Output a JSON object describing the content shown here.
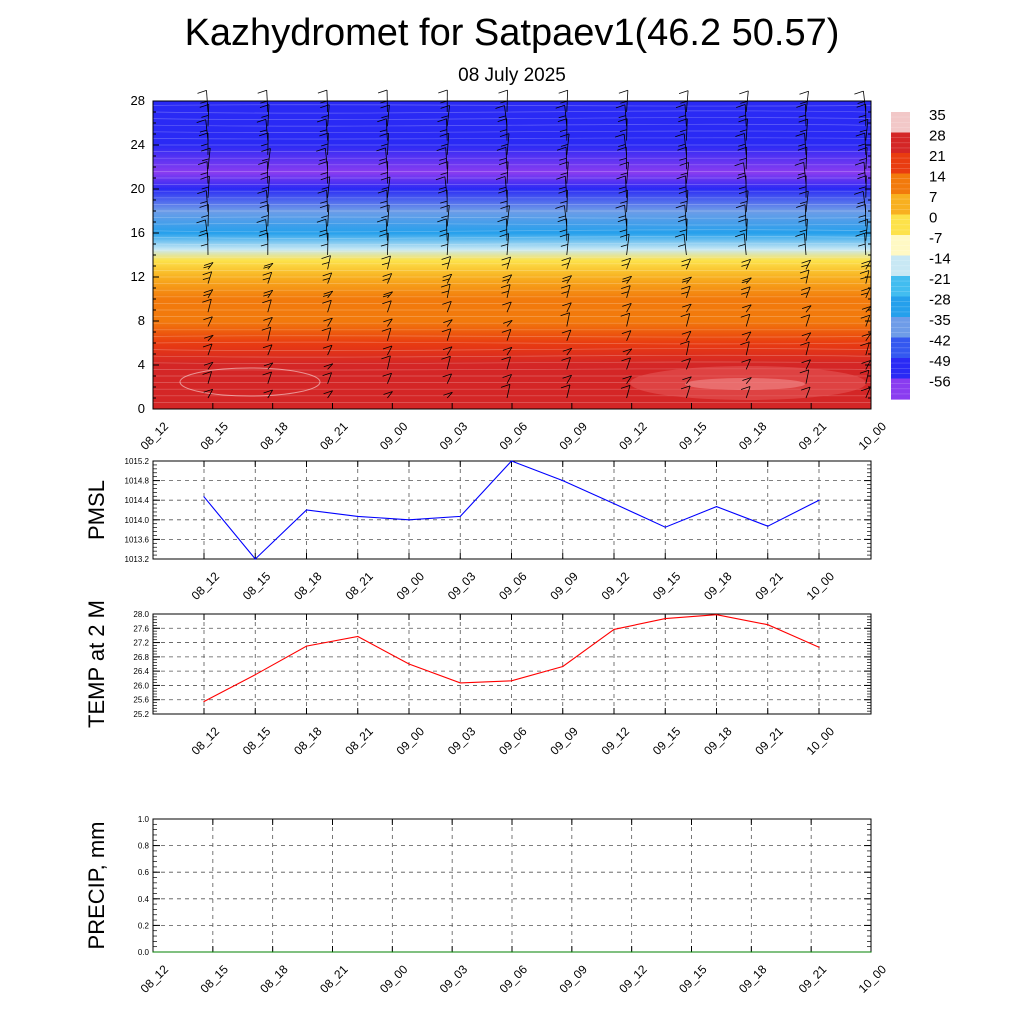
{
  "title": "Kazhydromet for Satpaev1(46.2 50.57)",
  "subtitle": "08 July 2025",
  "time_labels_a": [
    "08_12",
    "08_15",
    "08_18",
    "08_21",
    "09_00",
    "09_03",
    "09_06",
    "09_09",
    "09_12",
    "09_15",
    "09_18",
    "09_21",
    "10_00"
  ],
  "time_labels_b": [
    "08_12",
    "08_15",
    "08_18",
    "08_21",
    "09_00",
    "09_03",
    "09_06",
    "09_09",
    "09_12",
    "09_15",
    "09_18",
    "09_21",
    "10_00"
  ],
  "chart_data": [
    {
      "type": "heatmap",
      "title": "",
      "ylim": [
        0,
        28
      ],
      "y_ticks": [
        0,
        4,
        8,
        12,
        16,
        20,
        24,
        28
      ],
      "x_ticks": [
        "08_12",
        "08_15",
        "08_18",
        "08_21",
        "09_00",
        "09_03",
        "09_06",
        "09_09",
        "09_12",
        "09_15",
        "09_18",
        "09_21",
        "10_00"
      ],
      "colorbar_labels": [
        "35",
        "28",
        "21",
        "14",
        "7",
        "0",
        "-7",
        "-14",
        "-21",
        "-28",
        "-35",
        "-42",
        "-49",
        "-56"
      ],
      "vertical_profile": [
        {
          "level": 0,
          "value": 30
        },
        {
          "level": 2,
          "value": 28
        },
        {
          "level": 4,
          "value": 25
        },
        {
          "level": 6,
          "value": 22
        },
        {
          "level": 8,
          "value": 17
        },
        {
          "level": 10,
          "value": 11
        },
        {
          "level": 12,
          "value": 4
        },
        {
          "level": 13.5,
          "value": -3
        },
        {
          "level": 14.5,
          "value": -14
        },
        {
          "level": 16,
          "value": -25
        },
        {
          "level": 18,
          "value": -38
        },
        {
          "level": 20,
          "value": -52
        },
        {
          "level": 21.5,
          "value": -58
        },
        {
          "level": 24,
          "value": -52
        },
        {
          "level": 28,
          "value": -50
        }
      ],
      "colors": {
        "35": "#f2c8c8",
        "28": "#d42626",
        "21": "#e93c10",
        "14": "#f27a0c",
        "7": "#f8b020",
        "0": "#fde24a",
        "-7": "#fff9c4",
        "-14": "#c8e8f4",
        "-21": "#42bdf0",
        "-28": "#25a0ec",
        "-35": "#6e9ce8",
        "-42": "#3458f0",
        "-49": "#2a2af5",
        "-56": "#8a3cf0"
      }
    },
    {
      "type": "line",
      "ylabel": "PMSL",
      "ylim": [
        1013.2,
        1015.2
      ],
      "y_ticks": [
        "1013.2",
        "1013.6",
        "1014.0",
        "1014.4",
        "1014.8",
        "1015.2"
      ],
      "categories": [
        "08_12",
        "08_15",
        "08_18",
        "08_21",
        "09_00",
        "09_03",
        "09_06",
        "09_09",
        "09_12",
        "09_15",
        "09_18",
        "09_21",
        "10_00"
      ],
      "series": [
        {
          "values": [
            1014.47,
            1013.2,
            1014.2,
            1014.07,
            1014.0,
            1014.07,
            1015.2,
            1014.8,
            1014.33,
            1013.85,
            1014.27,
            1013.87,
            1014.4
          ],
          "color": "#0000ff"
        }
      ]
    },
    {
      "type": "line",
      "ylabel": "TEMP at 2 M",
      "ylim": [
        25.2,
        28.0
      ],
      "y_ticks": [
        "25.2",
        "25.6",
        "26.0",
        "26.4",
        "26.8",
        "27.2",
        "27.6",
        "28.0"
      ],
      "categories": [
        "08_12",
        "08_15",
        "08_18",
        "08_21",
        "09_00",
        "09_03",
        "09_06",
        "09_09",
        "09_12",
        "09_15",
        "09_18",
        "09_21",
        "10_00"
      ],
      "series": [
        {
          "values": [
            25.55,
            26.3,
            27.1,
            27.37,
            26.6,
            26.07,
            26.13,
            26.53,
            27.57,
            27.87,
            27.98,
            27.7,
            27.07
          ],
          "color": "#ff0000"
        }
      ]
    },
    {
      "type": "line",
      "ylabel": "PRECIP, mm",
      "ylim": [
        0.0,
        1.0
      ],
      "y_ticks": [
        "0.0",
        "0.2",
        "0.4",
        "0.6",
        "0.8",
        "1.0"
      ],
      "categories": [
        "08_12",
        "08_15",
        "08_18",
        "08_21",
        "09_00",
        "09_03",
        "09_06",
        "09_09",
        "09_12",
        "09_15",
        "09_18",
        "09_21",
        "10_00"
      ],
      "series": [
        {
          "values": [
            0,
            0,
            0,
            0,
            0,
            0,
            0,
            0,
            0,
            0,
            0,
            0,
            0
          ],
          "color": "#008000"
        }
      ]
    }
  ]
}
